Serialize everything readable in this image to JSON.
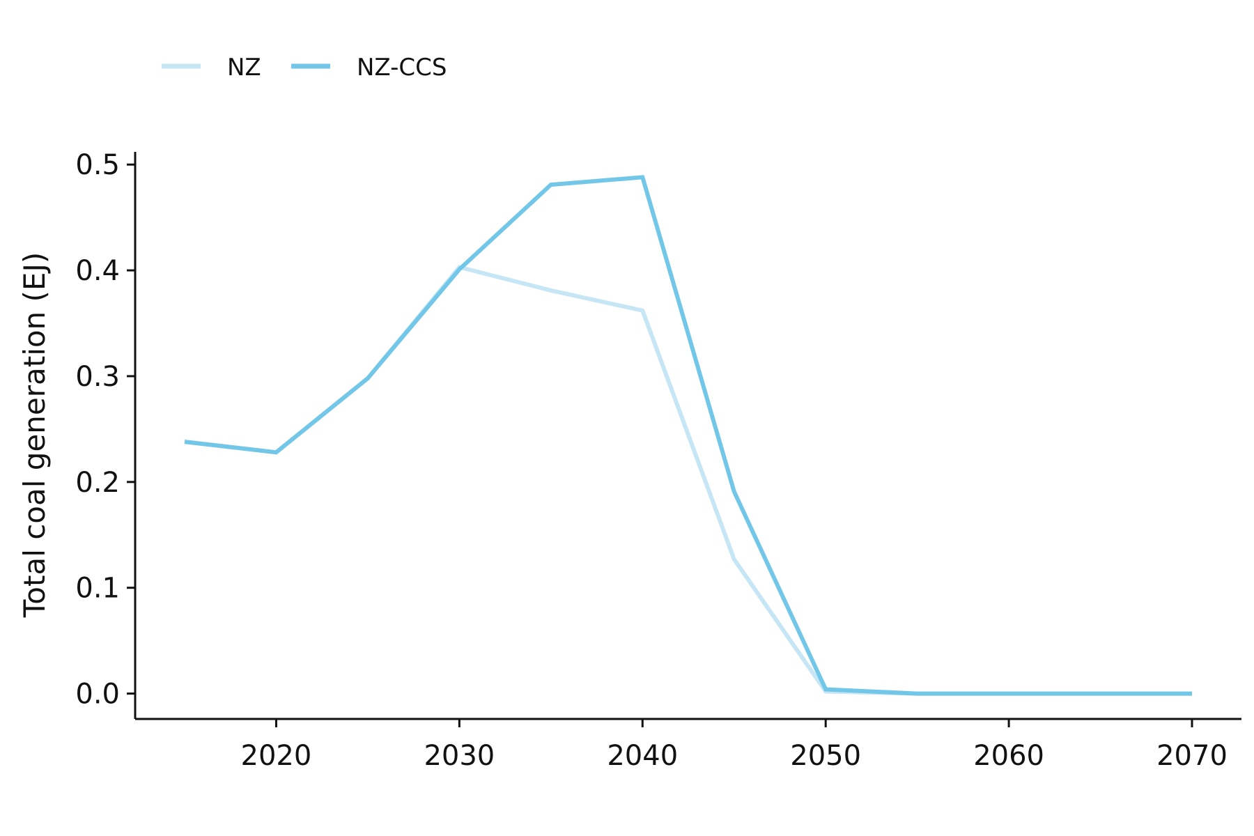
{
  "chart_data": {
    "type": "line",
    "title": "",
    "xlabel": "",
    "ylabel": "Total coal generation (EJ)",
    "x": [
      2015,
      2020,
      2025,
      2030,
      2035,
      2040,
      2045,
      2050,
      2055,
      2060,
      2065,
      2070
    ],
    "xlim": [
      2012.3,
      2072.7
    ],
    "ylim": [
      -0.024,
      0.512
    ],
    "x_ticks": [
      2020,
      2030,
      2040,
      2050,
      2060,
      2070
    ],
    "y_ticks": [
      0.0,
      0.1,
      0.2,
      0.3,
      0.4,
      0.5
    ],
    "x_tick_labels": [
      "2020",
      "2030",
      "2040",
      "2050",
      "2060",
      "2070"
    ],
    "y_tick_labels": [
      "0.0",
      "0.1",
      "0.2",
      "0.3",
      "0.4",
      "0.5"
    ],
    "grid": false,
    "legend_position": "top-left",
    "series": [
      {
        "name": "NZ",
        "color": "#c6e6f5",
        "values": [
          0.238,
          0.228,
          0.298,
          0.403,
          0.381,
          0.362,
          0.127,
          0.002,
          0.0,
          0.0,
          0.0,
          0.0
        ]
      },
      {
        "name": "NZ-CCS",
        "color": "#72c7e8",
        "values": [
          0.238,
          0.228,
          0.298,
          0.401,
          0.481,
          0.488,
          0.191,
          0.004,
          0.0,
          0.0,
          0.0,
          0.0
        ]
      }
    ]
  }
}
